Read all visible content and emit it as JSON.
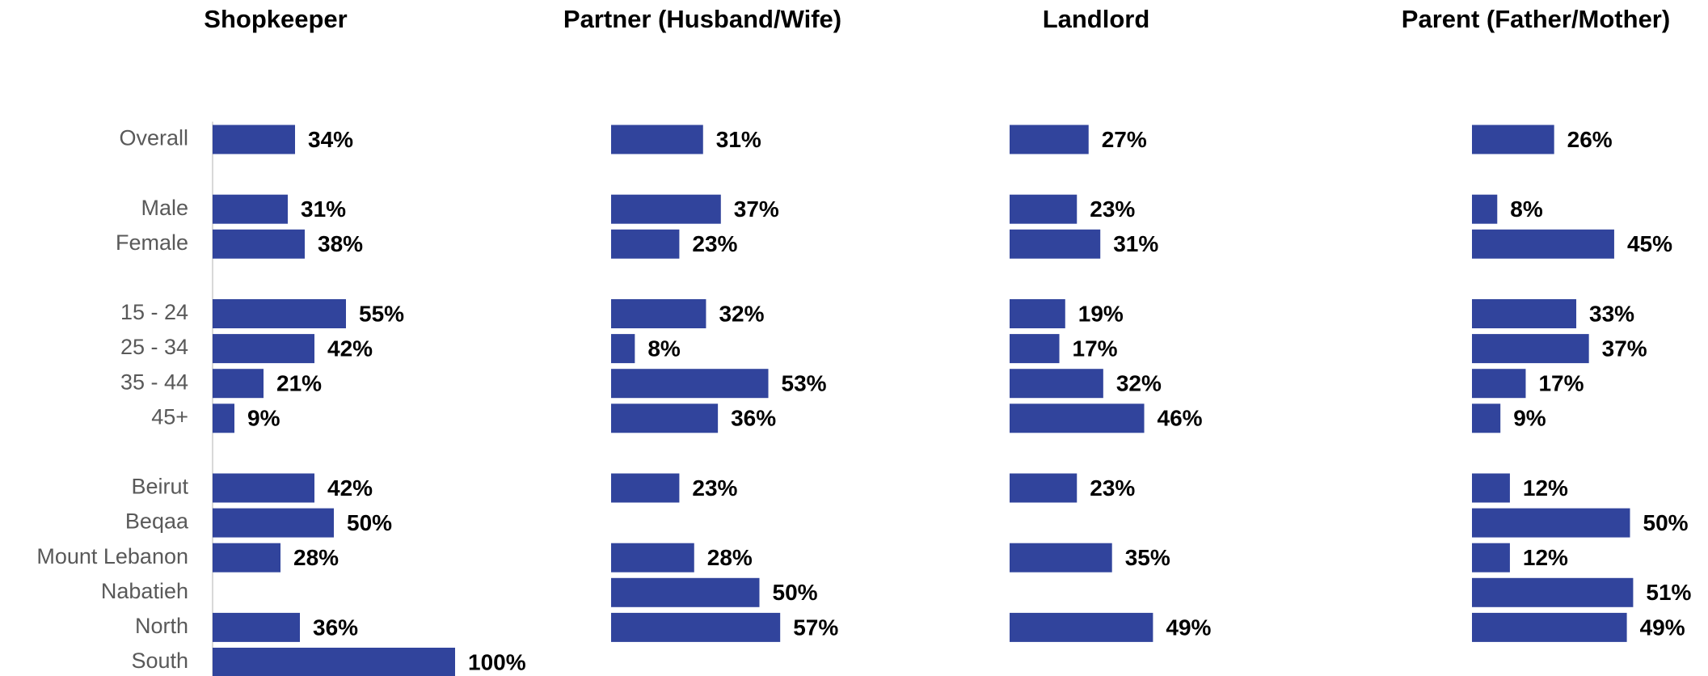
{
  "chart_data": [
    {
      "type": "bar",
      "title": "Shopkeeper",
      "categories": [
        "Overall",
        null,
        "Male",
        "Female",
        null,
        "15 - 24",
        "25 - 34",
        "35 - 44",
        "45+",
        null,
        "Beirut",
        "Beqaa",
        "Mount Lebanon",
        "Nabatieh",
        "North",
        "South"
      ],
      "values": [
        34,
        null,
        31,
        38,
        null,
        55,
        42,
        21,
        9,
        null,
        42,
        50,
        28,
        null,
        36,
        100
      ],
      "value_labels": [
        "34%",
        null,
        "31%",
        "38%",
        null,
        "55%",
        "42%",
        "21%",
        "9%",
        null,
        "42%",
        "50%",
        "28%",
        null,
        "36%",
        "100%"
      ],
      "color": "#31449c",
      "xlim": [
        0,
        100
      ]
    },
    {
      "type": "bar",
      "title": "Partner (Husband/Wife)",
      "values": [
        31,
        null,
        37,
        23,
        null,
        32,
        8,
        53,
        36,
        null,
        23,
        null,
        28,
        50,
        57,
        null
      ],
      "value_labels": [
        "31%",
        null,
        "37%",
        "23%",
        null,
        "32%",
        "8%",
        "53%",
        "36%",
        null,
        "23%",
        null,
        "28%",
        "50%",
        "57%",
        null
      ],
      "color": "#31449c",
      "xlim": [
        0,
        100
      ]
    },
    {
      "type": "bar",
      "title": "Landlord",
      "values": [
        27,
        null,
        23,
        31,
        null,
        19,
        17,
        32,
        46,
        null,
        23,
        null,
        35,
        null,
        49,
        null
      ],
      "value_labels": [
        "27%",
        null,
        "23%",
        "31%",
        null,
        "19%",
        "17%",
        "32%",
        "46%",
        null,
        "23%",
        null,
        "35%",
        null,
        "49%",
        null
      ],
      "color": "#31449c",
      "xlim": [
        0,
        100
      ]
    },
    {
      "type": "bar",
      "title": "Parent (Father/Mother)",
      "values": [
        26,
        null,
        8,
        45,
        null,
        33,
        37,
        17,
        9,
        null,
        12,
        50,
        12,
        51,
        49,
        null
      ],
      "value_labels": [
        "26%",
        null,
        "8%",
        "45%",
        null,
        "33%",
        "37%",
        "17%",
        "9%",
        null,
        "12%",
        "50%",
        "12%",
        "51%",
        "49%",
        null
      ],
      "color": "#31449c",
      "xlim": [
        0,
        100
      ]
    }
  ]
}
